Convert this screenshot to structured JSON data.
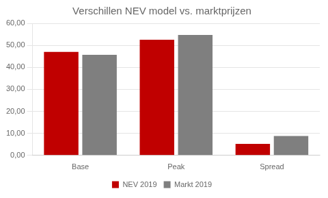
{
  "chart_data": {
    "type": "bar",
    "title": "Verschillen NEV model vs. marktprijzen",
    "categories": [
      "Base",
      "Peak",
      "Spread"
    ],
    "series": [
      {
        "name": "NEV 2019",
        "color": "#C00000",
        "values": [
          47.0,
          52.5,
          5.2
        ]
      },
      {
        "name": "Markt 2019",
        "color": "#7F7F7F",
        "values": [
          45.7,
          54.7,
          8.8
        ]
      }
    ],
    "ylim": [
      0,
      60
    ],
    "yticks": [
      {
        "value": 0,
        "label": "0,00"
      },
      {
        "value": 10,
        "label": "10,00"
      },
      {
        "value": 20,
        "label": "20,00"
      },
      {
        "value": 30,
        "label": "30,00"
      },
      {
        "value": 40,
        "label": "40,00"
      },
      {
        "value": 50,
        "label": "50,00"
      },
      {
        "value": 60,
        "label": "60,00"
      }
    ],
    "grid": true,
    "legend": "bottom"
  }
}
